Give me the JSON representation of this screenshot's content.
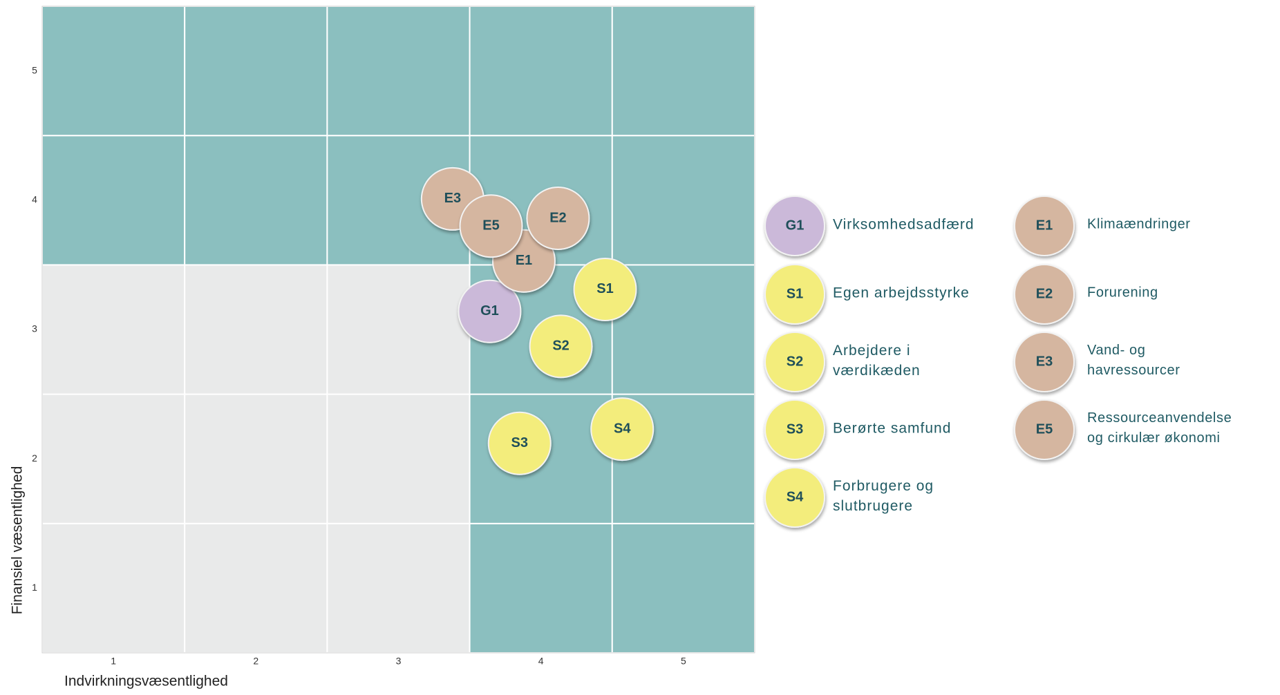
{
  "chart_data": {
    "type": "scatter",
    "x_label": "Indvirkningsvæsentlighed",
    "y_label": "Finansiel væsentlighed",
    "xlim": [
      0.5,
      5.5
    ],
    "ylim": [
      0.5,
      5.5
    ],
    "xticks": [
      1,
      2,
      3,
      4,
      5
    ],
    "yticks": [
      1,
      2,
      3,
      4,
      5
    ],
    "series": [
      {
        "code": "G1",
        "name": "Virksomhedsadfærd",
        "color": "#cbb9d9",
        "x": [
          3.64
        ],
        "y": [
          3.14
        ]
      },
      {
        "code": "S1",
        "name": "Egen arbejdsstyrke",
        "color": "#f3ed7b",
        "x": [
          4.45
        ],
        "y": [
          3.31
        ]
      },
      {
        "code": "S2",
        "name": "Arbejdere i\nværdikæden",
        "color": "#f3ed7b",
        "x": [
          4.14
        ],
        "y": [
          2.87
        ]
      },
      {
        "code": "S3",
        "name": "Berørte samfund",
        "color": "#f3ed7b",
        "x": [
          3.85
        ],
        "y": [
          2.12
        ]
      },
      {
        "code": "S4",
        "name": "Forbrugere og\nslutbrugere",
        "color": "#f3ed7b",
        "x": [
          4.57
        ],
        "y": [
          2.23
        ]
      },
      {
        "code": "E1",
        "name": "Klimaændringer",
        "color": "#d5b6a0",
        "x": [
          3.88
        ],
        "y": [
          3.53
        ]
      },
      {
        "code": "E2",
        "name": "Forurening",
        "color": "#d5b6a0",
        "x": [
          4.12
        ],
        "y": [
          3.86
        ]
      },
      {
        "code": "E3",
        "name": "Vand- og\nhavressourcer",
        "color": "#d5b6a0",
        "x": [
          3.38
        ],
        "y": [
          4.01
        ]
      },
      {
        "code": "E5",
        "name": "Ressourceanvendelse\nog cirkulær økonomi",
        "color": "#d5b6a0",
        "x": [
          3.65
        ],
        "y": [
          3.8
        ]
      }
    ]
  }
}
